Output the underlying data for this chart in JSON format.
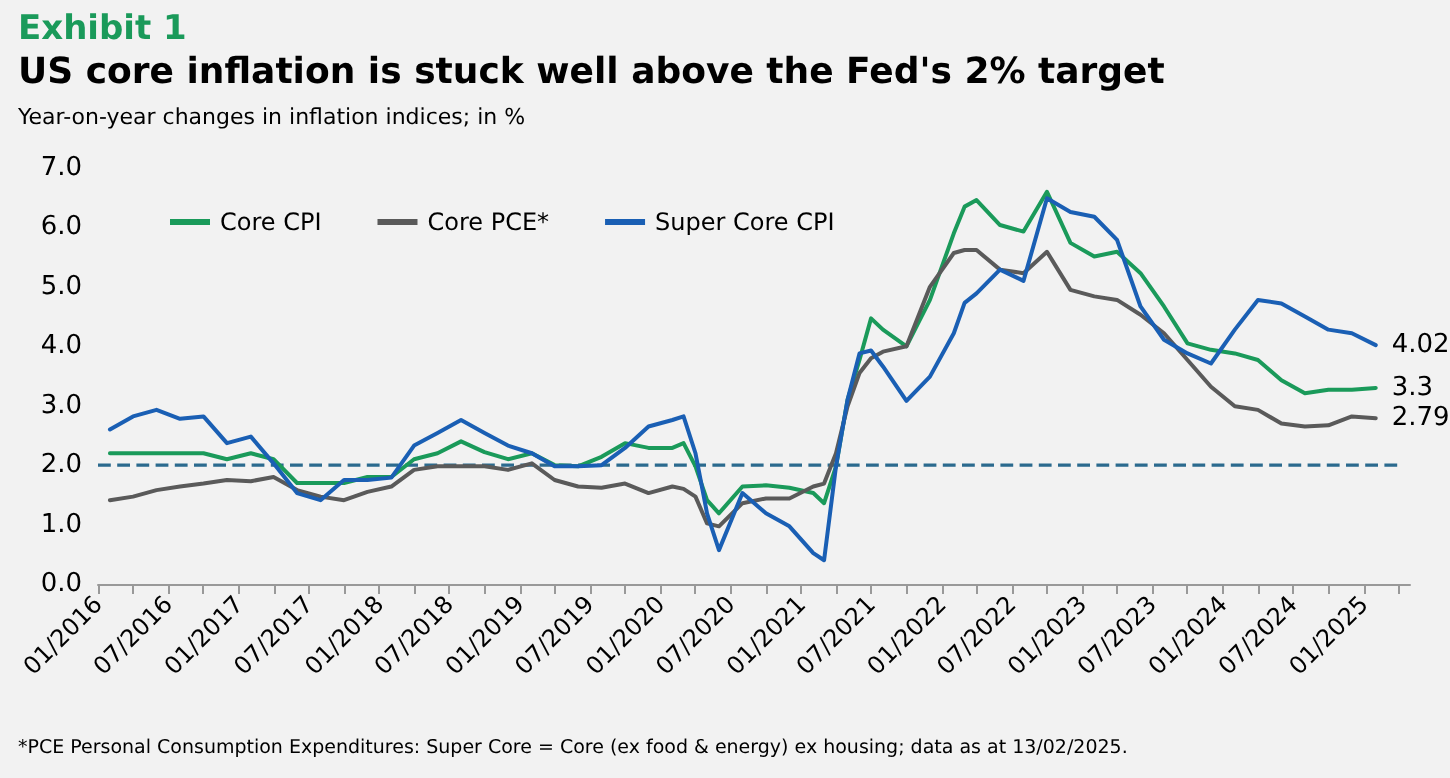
{
  "chart_data": {
    "type": "line",
    "title": "US core inflation is stuck well above the Fed's 2% target",
    "subtitle": "Year-on-year changes in inflation indices; in %",
    "annotations": [
      "Exhibit 1",
      "*PCE Personal Consumption Expenditures: Super Core = Core (ex food & energy) ex housing; data as at 13/02/2025."
    ],
    "x": [
      "2016-02",
      "2016-04",
      "2016-06",
      "2016-08",
      "2016-10",
      "2016-12",
      "2017-02",
      "2017-04",
      "2017-06",
      "2017-08",
      "2017-10",
      "2017-12",
      "2018-02",
      "2018-04",
      "2018-06",
      "2018-08",
      "2018-10",
      "2018-12",
      "2019-02",
      "2019-04",
      "2019-06",
      "2019-08",
      "2019-10",
      "2019-12",
      "2020-02",
      "2020-03",
      "2020-04",
      "2020-05",
      "2020-06",
      "2020-08",
      "2020-10",
      "2020-12",
      "2021-02",
      "2021-03",
      "2021-04",
      "2021-05",
      "2021-06",
      "2021-07",
      "2021-08",
      "2021-10",
      "2021-12",
      "2022-02",
      "2022-03",
      "2022-04",
      "2022-06",
      "2022-08",
      "2022-10",
      "2022-12",
      "2023-02",
      "2023-04",
      "2023-06",
      "2023-08",
      "2023-10",
      "2023-12",
      "2024-02",
      "2024-04",
      "2024-06",
      "2024-08",
      "2024-10",
      "2024-12",
      "2025-02"
    ],
    "series": [
      {
        "name": "Core CPI",
        "color": "#1a9a5a",
        "values": [
          2.2,
          2.2,
          2.2,
          2.2,
          2.2,
          2.1,
          2.2,
          2.1,
          1.7,
          1.7,
          1.7,
          1.8,
          1.8,
          2.1,
          2.2,
          2.4,
          2.22,
          2.1,
          2.2,
          2.0,
          1.98,
          2.14,
          2.37,
          2.29,
          2.29,
          2.37,
          1.98,
          1.41,
          1.19,
          1.64,
          1.66,
          1.62,
          1.53,
          1.36,
          1.98,
          3.1,
          3.77,
          4.47,
          4.28,
          4.0,
          4.78,
          5.9,
          6.35,
          6.46,
          6.04,
          5.93,
          6.6,
          5.74,
          5.51,
          5.59,
          5.23,
          4.67,
          4.05,
          3.94,
          3.88,
          3.77,
          3.43,
          3.21,
          3.27,
          3.27,
          3.3
        ],
        "value_labels": [
          null,
          null,
          null,
          null,
          null,
          null,
          null,
          null,
          null,
          null,
          null,
          null,
          null,
          null,
          null,
          null,
          null,
          null,
          null,
          null,
          null,
          null,
          null,
          null,
          null,
          null,
          null,
          null,
          null,
          null,
          null,
          null,
          null,
          null,
          null,
          null,
          null,
          null,
          null,
          null,
          null,
          null,
          null,
          null,
          null,
          null,
          null,
          null,
          null,
          null,
          null,
          null,
          null,
          null,
          null,
          null,
          null,
          null,
          null,
          null,
          "3.3"
        ]
      },
      {
        "name": "Core PCE*",
        "color": "#5a5a5a",
        "values": [
          1.41,
          1.47,
          1.58,
          1.64,
          1.69,
          1.75,
          1.73,
          1.8,
          1.58,
          1.47,
          1.41,
          1.55,
          1.64,
          1.92,
          1.98,
          1.98,
          1.98,
          1.92,
          2.03,
          1.75,
          1.64,
          1.62,
          1.69,
          1.53,
          1.64,
          1.6,
          1.47,
          1.02,
          0.97,
          1.36,
          1.44,
          1.44,
          1.64,
          1.69,
          2.2,
          2.99,
          3.55,
          3.8,
          3.91,
          4.0,
          5.0,
          5.57,
          5.62,
          5.62,
          5.29,
          5.23,
          5.59,
          4.95,
          4.84,
          4.78,
          4.53,
          4.22,
          3.77,
          3.32,
          2.99,
          2.93,
          2.7,
          2.65,
          2.67,
          2.82,
          2.79
        ],
        "value_labels": [
          null,
          null,
          null,
          null,
          null,
          null,
          null,
          null,
          null,
          null,
          null,
          null,
          null,
          null,
          null,
          null,
          null,
          null,
          null,
          null,
          null,
          null,
          null,
          null,
          null,
          null,
          null,
          null,
          null,
          null,
          null,
          null,
          null,
          null,
          null,
          null,
          null,
          null,
          null,
          null,
          null,
          null,
          null,
          null,
          null,
          null,
          null,
          null,
          null,
          null,
          null,
          null,
          null,
          null,
          null,
          null,
          null,
          null,
          null,
          null,
          "2.79"
        ]
      },
      {
        "name": "Super Core CPI",
        "color": "#1a5fb4",
        "values": [
          2.6,
          2.82,
          2.93,
          2.78,
          2.82,
          2.37,
          2.48,
          2.03,
          1.53,
          1.41,
          1.75,
          1.75,
          1.79,
          2.33,
          2.54,
          2.76,
          2.54,
          2.33,
          2.2,
          1.98,
          1.98,
          2.0,
          2.29,
          2.65,
          2.76,
          2.82,
          2.2,
          1.19,
          0.57,
          1.53,
          1.19,
          0.97,
          0.52,
          0.4,
          1.98,
          3.1,
          3.88,
          3.93,
          3.66,
          3.08,
          3.49,
          4.22,
          4.73,
          4.89,
          5.29,
          5.1,
          6.49,
          6.26,
          6.18,
          5.79,
          4.67,
          4.11,
          3.88,
          3.71,
          4.28,
          4.78,
          4.72,
          4.5,
          4.28,
          4.22,
          4.02
        ],
        "value_labels": [
          null,
          null,
          null,
          null,
          null,
          null,
          null,
          null,
          null,
          null,
          null,
          null,
          null,
          null,
          null,
          null,
          null,
          null,
          null,
          null,
          null,
          null,
          null,
          null,
          null,
          null,
          null,
          null,
          null,
          null,
          null,
          null,
          null,
          null,
          null,
          null,
          null,
          null,
          null,
          null,
          null,
          null,
          null,
          null,
          null,
          null,
          null,
          null,
          null,
          null,
          null,
          null,
          null,
          null,
          null,
          null,
          null,
          null,
          null,
          null,
          "4.02"
        ]
      }
    ],
    "xlim": [
      "2016-01",
      "2025-05"
    ],
    "xticks": [
      {
        "value": "2016-01",
        "label": "01/2016"
      },
      {
        "value": "2016-04",
        "label": null
      },
      {
        "value": "2016-07",
        "label": "07/2016"
      },
      {
        "value": "2016-10",
        "label": null
      },
      {
        "value": "2017-01",
        "label": "01/2017"
      },
      {
        "value": "2017-04",
        "label": null
      },
      {
        "value": "2017-07",
        "label": "07/2017"
      },
      {
        "value": "2017-10",
        "label": null
      },
      {
        "value": "2018-01",
        "label": "01/2018"
      },
      {
        "value": "2018-04",
        "label": null
      },
      {
        "value": "2018-07",
        "label": "07/2018"
      },
      {
        "value": "2018-10",
        "label": null
      },
      {
        "value": "2019-01",
        "label": "01/2019"
      },
      {
        "value": "2019-04",
        "label": null
      },
      {
        "value": "2019-07",
        "label": "07/2019"
      },
      {
        "value": "2019-10",
        "label": null
      },
      {
        "value": "2020-01",
        "label": "01/2020"
      },
      {
        "value": "2020-04",
        "label": null
      },
      {
        "value": "2020-07",
        "label": "07/2020"
      },
      {
        "value": "2020-10",
        "label": null
      },
      {
        "value": "2021-01",
        "label": "01/2021"
      },
      {
        "value": "2021-04",
        "label": null
      },
      {
        "value": "2021-07",
        "label": "07/2021"
      },
      {
        "value": "2021-10",
        "label": null
      },
      {
        "value": "2022-01",
        "label": "01/2022"
      },
      {
        "value": "2022-04",
        "label": null
      },
      {
        "value": "2022-07",
        "label": "07/2022"
      },
      {
        "value": "2022-10",
        "label": null
      },
      {
        "value": "2023-01",
        "label": "01/2023"
      },
      {
        "value": "2023-04",
        "label": null
      },
      {
        "value": "2023-07",
        "label": "07/2023"
      },
      {
        "value": "2023-10",
        "label": null
      },
      {
        "value": "2024-01",
        "label": "01/2024"
      },
      {
        "value": "2024-04",
        "label": null
      },
      {
        "value": "2024-07",
        "label": "07/2024"
      },
      {
        "value": "2024-10",
        "label": null
      },
      {
        "value": "2025-01",
        "label": "01/2025"
      },
      {
        "value": "2025-04",
        "label": null
      }
    ],
    "ylim": [
      0,
      7
    ],
    "yticks": [
      {
        "value": 0,
        "label": "0.0"
      },
      {
        "value": 1,
        "label": "1.0"
      },
      {
        "value": 2,
        "label": "2.0"
      },
      {
        "value": 3,
        "label": "3.0"
      },
      {
        "value": 4,
        "label": "4.0"
      },
      {
        "value": 5,
        "label": "5.0"
      },
      {
        "value": 6,
        "label": "6.0"
      },
      {
        "value": 7,
        "label": "7.0"
      }
    ],
    "ref_lines": [
      {
        "axis": "y",
        "value": 2,
        "color": "#2b6a8e",
        "line_style": "dashed"
      }
    ],
    "legend": "top left",
    "marker": "none",
    "line_style": "solid"
  }
}
